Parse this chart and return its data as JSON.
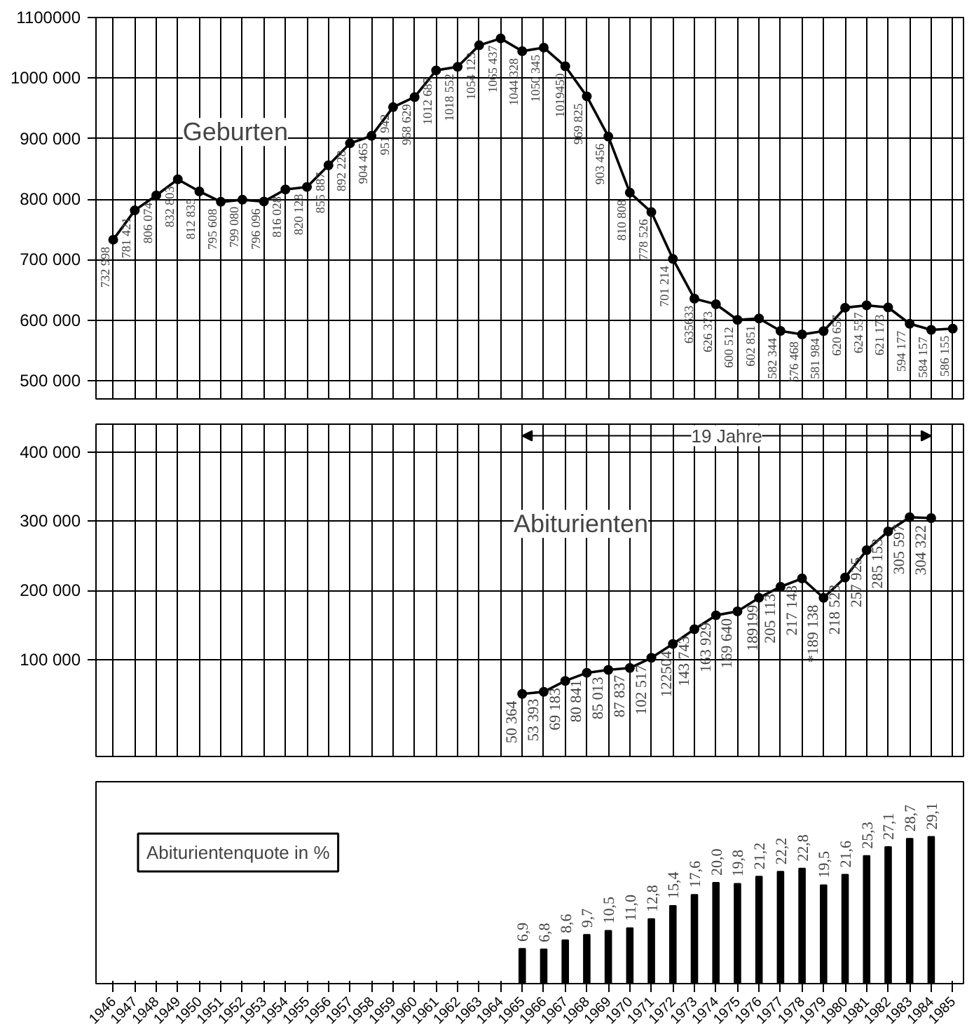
{
  "chart_data": [
    {
      "type": "line",
      "xlim": [
        1945.2,
        1985.5
      ],
      "xticks": [
        1946,
        1947,
        1948,
        1949,
        1950,
        1951,
        1952,
        1953,
        1954,
        1955,
        1956,
        1957,
        1958,
        1959,
        1960,
        1961,
        1962,
        1963,
        1964,
        1965,
        1966,
        1967,
        1968,
        1969,
        1970,
        1971,
        1972,
        1973,
        1974,
        1975,
        1976,
        1977,
        1978,
        1979,
        1980,
        1981,
        1982,
        1983,
        1984,
        1985
      ],
      "ylim": [
        470000,
        1100000
      ],
      "yticks": [
        {
          "value": 500000,
          "label": "500 000"
        },
        {
          "value": 600000,
          "label": "600 000"
        },
        {
          "value": 700000,
          "label": "700 000"
        },
        {
          "value": 800000,
          "label": "800 000"
        },
        {
          "value": 900000,
          "label": "900 000"
        },
        {
          "value": 1000000,
          "label": "1000 000"
        },
        {
          "value": 1100000,
          "label": "1100000"
        }
      ],
      "tick_labels": "y",
      "grid": true,
      "marker": "circle",
      "x": [
        1946,
        1947,
        1948,
        1949,
        1950,
        1951,
        1952,
        1953,
        1954,
        1955,
        1956,
        1957,
        1958,
        1959,
        1960,
        1961,
        1962,
        1963,
        1964,
        1965,
        1966,
        1967,
        1968,
        1969,
        1970,
        1971,
        1972,
        1973,
        1974,
        1975,
        1976,
        1977,
        1978,
        1979,
        1980,
        1981,
        1982,
        1983,
        1984,
        1985
      ],
      "series": [
        {
          "name": "Geburten",
          "color": "#000000",
          "values": [
            732998,
            781421,
            806074,
            832803,
            812835,
            795608,
            799080,
            796096,
            816028,
            820128,
            855887,
            892228,
            904465,
            951942,
            968629,
            1012687,
            1018552,
            1054123,
            1065437,
            1044328,
            1050345,
            1019450,
            969825,
            903456,
            810808,
            778526,
            701214,
            635633,
            626373,
            600512,
            602851,
            582344,
            576468,
            581984,
            620657,
            624557,
            621173,
            594177,
            584157,
            586155
          ],
          "value_labels": [
            "732 998",
            "781 421",
            "806 074",
            "832 803",
            "812 835",
            "795 608",
            "799 080",
            "796 096",
            "816 028",
            "820 128",
            "855 887",
            "892 228",
            "904 465",
            "951 942",
            "968 629",
            "1012 687",
            "1018 552",
            "1054 123",
            "1065 437",
            "1044 328",
            "1050 345",
            "1019450",
            "969 825",
            "903 456",
            "810 808",
            "778 526",
            "701 214",
            "635633",
            "626 373",
            "600 512",
            "602 851",
            "582 344",
            "576 468",
            "581 984",
            "620 657",
            "624 557",
            "621 173",
            "594 177",
            "584 157",
            "586 155"
          ]
        }
      ]
    },
    {
      "type": "line",
      "xlim": [
        1945.2,
        1985.5
      ],
      "xticks": [
        1946,
        1947,
        1948,
        1949,
        1950,
        1951,
        1952,
        1953,
        1954,
        1955,
        1956,
        1957,
        1958,
        1959,
        1960,
        1961,
        1962,
        1963,
        1964,
        1965,
        1966,
        1967,
        1968,
        1969,
        1970,
        1971,
        1972,
        1973,
        1974,
        1975,
        1976,
        1977,
        1978,
        1979,
        1980,
        1981,
        1982,
        1983,
        1984,
        1985
      ],
      "ylim": [
        -40000,
        440000
      ],
      "yticks": [
        {
          "value": 100000,
          "label": "100 000"
        },
        {
          "value": 200000,
          "label": "200 000"
        },
        {
          "value": 300000,
          "label": "300 000"
        },
        {
          "value": 400000,
          "label": "400 000"
        }
      ],
      "tick_labels": "y",
      "grid": true,
      "marker": "circle",
      "annotations": [
        "19 Jahre"
      ],
      "x": [
        1965,
        1966,
        1967,
        1968,
        1969,
        1970,
        1971,
        1972,
        1973,
        1974,
        1975,
        1976,
        1977,
        1978,
        1979,
        1980,
        1981,
        1982,
        1983,
        1984
      ],
      "series": [
        {
          "name": "Abiturienten",
          "color": "#000000",
          "values": [
            50364,
            53393,
            69183,
            80841,
            85013,
            87837,
            102517,
            122504,
            143743,
            163929,
            169640,
            189199,
            205113,
            217143,
            189138,
            218523,
            257925,
            285153,
            305597,
            304322
          ],
          "value_labels": [
            "50 364",
            "53 393",
            "69 183",
            "80 841",
            "85 013",
            "87 837",
            "102 517",
            "122504",
            "143 743",
            "163 929",
            "169 640",
            "189199",
            "205 113",
            "217 143",
            "*189 138",
            "218 523",
            "257 925",
            "285 153",
            "305 597",
            "304 322"
          ]
        }
      ]
    },
    {
      "type": "bar",
      "title": "Abiturientenquote in %",
      "xlim": [
        1945.2,
        1985.5
      ],
      "xticks": [
        1946,
        1947,
        1948,
        1949,
        1950,
        1951,
        1952,
        1953,
        1954,
        1955,
        1956,
        1957,
        1958,
        1959,
        1960,
        1961,
        1962,
        1963,
        1964,
        1965,
        1966,
        1967,
        1968,
        1969,
        1970,
        1971,
        1972,
        1973,
        1974,
        1975,
        1976,
        1977,
        1978,
        1979,
        1980,
        1981,
        1982,
        1983,
        1984,
        1985
      ],
      "ylim": [
        0,
        40
      ],
      "tick_labels": "x",
      "grid": false,
      "x": [
        1965,
        1966,
        1967,
        1968,
        1969,
        1970,
        1971,
        1972,
        1973,
        1974,
        1975,
        1976,
        1977,
        1978,
        1979,
        1980,
        1981,
        1982,
        1983,
        1984
      ],
      "series": [
        {
          "color": "#000000",
          "values": [
            6.9,
            6.8,
            8.6,
            9.7,
            10.5,
            11.0,
            12.8,
            15.4,
            17.6,
            20.0,
            19.8,
            21.2,
            22.2,
            22.8,
            19.5,
            21.6,
            25.3,
            27.1,
            28.7,
            29.1
          ],
          "value_labels": [
            "6,9",
            "6,8",
            "8,6",
            "9,7",
            "10,5",
            "11,0",
            "12,8",
            "15,4",
            "17,6",
            "20,0",
            "19,8",
            "21,2",
            "22,2",
            "22,8",
            "19,5",
            "21,6",
            "25,3",
            "27,1",
            "28,7",
            "29,1"
          ]
        }
      ]
    }
  ]
}
